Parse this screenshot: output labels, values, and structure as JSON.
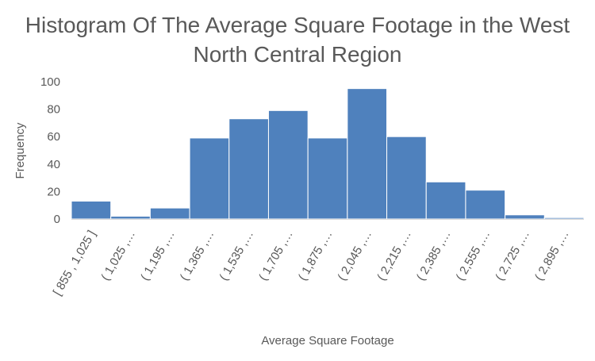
{
  "chart_data": {
    "type": "bar",
    "title": "Histogram Of The Average Square Footage in the West North Central Region",
    "title_lines": [
      "Histogram Of The Average Square Footage in the West",
      "North Central Region"
    ],
    "xlabel": "Average Square Footage",
    "ylabel": "Frequency",
    "ylim": [
      0,
      100
    ],
    "yticks": [
      0,
      20,
      40,
      60,
      80,
      100
    ],
    "categories": [
      "[ 855 , 1,025 ]",
      "( 1,025 ,…",
      "( 1,195 ,…",
      "( 1,365 ,…",
      "( 1,535 ,…",
      "( 1,705 ,…",
      "( 1,875 ,…",
      "( 2,045 ,…",
      "( 2,215 ,…",
      "( 2,385 ,…",
      "( 2,555 ,…",
      "( 2,725 ,…",
      "( 2,895 ,…"
    ],
    "values": [
      13,
      2,
      8,
      59,
      73,
      79,
      59,
      95,
      60,
      27,
      21,
      3,
      1
    ],
    "grid": false,
    "legend": "none",
    "bar_color": "#4f81bd"
  }
}
